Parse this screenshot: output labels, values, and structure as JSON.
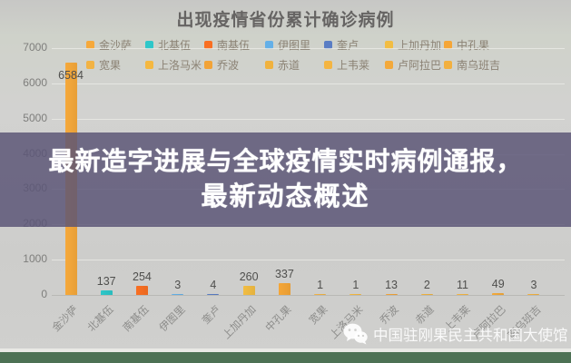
{
  "title": "出现疫情省份累计确诊病例",
  "overlay": {
    "line1": "最新造字进展与全球疫情实时病例通报，",
    "line2": "最新动态概述"
  },
  "watermark": {
    "icon": "wechat-icon",
    "text": "中国驻刚果民主共和国大使馆"
  },
  "accent_colors": {
    "banner_purple": "#5a5576",
    "footer_green": "#4d7154",
    "background_gray": "#cdcdcb"
  },
  "chart_data": {
    "type": "bar",
    "title": "出现疫情省份累计确诊病例",
    "categories": [
      "金沙萨",
      "北基伍",
      "南基伍",
      "伊图里",
      "奎卢",
      "上加丹加",
      "中孔果",
      "宽果",
      "上洛马米",
      "乔波",
      "赤道",
      "上韦莱",
      "卢阿拉巴",
      "南乌班吉"
    ],
    "values": [
      6584,
      137,
      254,
      3,
      4,
      260,
      337,
      1,
      1,
      13,
      2,
      11,
      49,
      3
    ],
    "colors": [
      "#f6a93b",
      "#2ec7c9",
      "#f96f22",
      "#64b0e8",
      "#5a7dc4",
      "#f2bd43",
      "#f5a637",
      "#f2b344",
      "#f5b840",
      "#f2a337",
      "#f0b23e",
      "#f4b542",
      "#f3a93a",
      "#f2b03f"
    ],
    "labeled_values": [
      "6584",
      "137",
      "254",
      "3",
      "4",
      "260",
      "337",
      "1",
      "1",
      "13",
      "2",
      "11",
      "49",
      "3"
    ],
    "xlabel": "",
    "ylabel": "",
    "ylim": [
      0,
      7000
    ],
    "yticks": [
      0,
      1000,
      2000,
      3000,
      4000,
      5000,
      6000,
      7000
    ],
    "grid": true,
    "legend_position": "top",
    "legend_rows": [
      [
        "金沙萨",
        "北基伍",
        "南基伍",
        "伊图里",
        "奎卢",
        "上加丹加",
        "中孔果"
      ],
      [
        "宽果",
        "上洛马米",
        "乔波",
        "赤道",
        "上韦莱",
        "卢阿拉巴",
        "南乌班吉"
      ]
    ]
  }
}
